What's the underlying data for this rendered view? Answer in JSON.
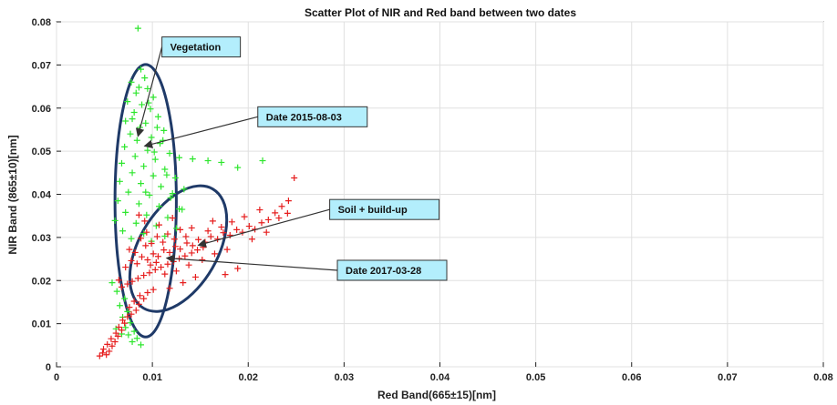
{
  "chart_data": {
    "type": "scatter",
    "title": "Scatter Plot of NIR and Red band between two dates",
    "xlabel": "Red Band(665±15)[nm]",
    "ylabel": "NIR Band (865±10)[nm]",
    "xlim": [
      0,
      0.08
    ],
    "ylim": [
      0,
      0.08
    ],
    "xticks": [
      "0",
      "0.01",
      "0.02",
      "0.03",
      "0.04",
      "0.05",
      "0.06",
      "0.07",
      "0.08"
    ],
    "yticks": [
      "0",
      "0.01",
      "0.02",
      "0.03",
      "0.04",
      "0.05",
      "0.06",
      "0.07",
      "0.08"
    ],
    "xtick_values": [
      0,
      0.01,
      0.02,
      0.03,
      0.04,
      0.05,
      0.06,
      0.07,
      0.08
    ],
    "ytick_values": [
      0,
      0.01,
      0.02,
      0.03,
      0.04,
      0.05,
      0.06,
      0.07,
      0.08
    ],
    "grid": true,
    "marker": "+",
    "series": [
      {
        "color": "#2ee62e",
        "points": [
          [
            0.0085,
            0.0785
          ],
          [
            0.0088,
            0.069
          ],
          [
            0.0092,
            0.067
          ],
          [
            0.0078,
            0.066
          ],
          [
            0.0095,
            0.0645
          ],
          [
            0.0083,
            0.0635
          ],
          [
            0.0101,
            0.0625
          ],
          [
            0.0074,
            0.0615
          ],
          [
            0.0089,
            0.0608
          ],
          [
            0.0098,
            0.0598
          ],
          [
            0.0081,
            0.059
          ],
          [
            0.0106,
            0.058
          ],
          [
            0.0072,
            0.057
          ],
          [
            0.0093,
            0.0565
          ],
          [
            0.0087,
            0.0555
          ],
          [
            0.0112,
            0.0548
          ],
          [
            0.0077,
            0.054
          ],
          [
            0.0099,
            0.0532
          ],
          [
            0.0084,
            0.0525
          ],
          [
            0.0108,
            0.0518
          ],
          [
            0.0071,
            0.051
          ],
          [
            0.0095,
            0.0502
          ],
          [
            0.0118,
            0.0495
          ],
          [
            0.0082,
            0.0488
          ],
          [
            0.0103,
            0.0481
          ],
          [
            0.0128,
            0.0485
          ],
          [
            0.0142,
            0.0482
          ],
          [
            0.0158,
            0.0478
          ],
          [
            0.0172,
            0.0474
          ],
          [
            0.0189,
            0.0462
          ],
          [
            0.0215,
            0.0478
          ],
          [
            0.0068,
            0.0472
          ],
          [
            0.0091,
            0.0465
          ],
          [
            0.0113,
            0.0458
          ],
          [
            0.0079,
            0.045
          ],
          [
            0.0101,
            0.0443
          ],
          [
            0.0124,
            0.0438
          ],
          [
            0.0066,
            0.043
          ],
          [
            0.0088,
            0.0425
          ],
          [
            0.0109,
            0.0418
          ],
          [
            0.0133,
            0.0412
          ],
          [
            0.0075,
            0.0405
          ],
          [
            0.0097,
            0.0398
          ],
          [
            0.0119,
            0.0392
          ],
          [
            0.0064,
            0.0385
          ],
          [
            0.0086,
            0.0378
          ],
          [
            0.0107,
            0.0372
          ],
          [
            0.0128,
            0.0366
          ],
          [
            0.0072,
            0.0358
          ],
          [
            0.0094,
            0.0352
          ],
          [
            0.0116,
            0.0346
          ],
          [
            0.0061,
            0.0339
          ],
          [
            0.0083,
            0.0333
          ],
          [
            0.0104,
            0.0327
          ],
          [
            0.0125,
            0.0321
          ],
          [
            0.0069,
            0.0315
          ],
          [
            0.0091,
            0.0309
          ],
          [
            0.0113,
            0.0303
          ],
          [
            0.0078,
            0.0297
          ],
          [
            0.0099,
            0.0291
          ],
          [
            0.0058,
            0.0195
          ],
          [
            0.0063,
            0.0175
          ],
          [
            0.0071,
            0.0158
          ],
          [
            0.0066,
            0.0142
          ],
          [
            0.0074,
            0.0128
          ],
          [
            0.0069,
            0.0115
          ],
          [
            0.0077,
            0.0102
          ],
          [
            0.0072,
            0.0091
          ],
          [
            0.0081,
            0.0082
          ],
          [
            0.0075,
            0.0074
          ],
          [
            0.0084,
            0.0066
          ],
          [
            0.0079,
            0.0058
          ],
          [
            0.0088,
            0.0051
          ],
          [
            0.0062,
            0.0088
          ],
          [
            0.0068,
            0.0076
          ],
          [
            0.0093,
            0.0405
          ],
          [
            0.0105,
            0.0555
          ],
          [
            0.0111,
            0.0525
          ],
          [
            0.0079,
            0.0575
          ],
          [
            0.0096,
            0.0612
          ],
          [
            0.0086,
            0.0648
          ],
          [
            0.0102,
            0.0498
          ],
          [
            0.0115,
            0.0445
          ],
          [
            0.0121,
            0.0402
          ],
          [
            0.0131,
            0.0365
          ]
        ]
      },
      {
        "color": "#e61e1e",
        "points": [
          [
            0.0045,
            0.0025
          ],
          [
            0.0048,
            0.0032
          ],
          [
            0.0052,
            0.0028
          ],
          [
            0.0049,
            0.0041
          ],
          [
            0.0055,
            0.0036
          ],
          [
            0.0058,
            0.0048
          ],
          [
            0.0053,
            0.0052
          ],
          [
            0.0061,
            0.0058
          ],
          [
            0.0057,
            0.0065
          ],
          [
            0.0064,
            0.0071
          ],
          [
            0.0062,
            0.0078
          ],
          [
            0.0068,
            0.0085
          ],
          [
            0.0065,
            0.0092
          ],
          [
            0.0071,
            0.0101
          ],
          [
            0.0069,
            0.0108
          ],
          [
            0.0074,
            0.0116
          ],
          [
            0.0078,
            0.0122
          ],
          [
            0.0083,
            0.0131
          ],
          [
            0.0076,
            0.0138
          ],
          [
            0.0086,
            0.0145
          ],
          [
            0.0081,
            0.0152
          ],
          [
            0.0091,
            0.0158
          ],
          [
            0.0087,
            0.0165
          ],
          [
            0.0095,
            0.0172
          ],
          [
            0.0101,
            0.0179
          ],
          [
            0.0068,
            0.0185
          ],
          [
            0.0074,
            0.0192
          ],
          [
            0.0079,
            0.0198
          ],
          [
            0.0085,
            0.0205
          ],
          [
            0.0091,
            0.0212
          ],
          [
            0.0097,
            0.0218
          ],
          [
            0.0103,
            0.0225
          ],
          [
            0.0109,
            0.0231
          ],
          [
            0.0116,
            0.0238
          ],
          [
            0.0122,
            0.0244
          ],
          [
            0.0128,
            0.0251
          ],
          [
            0.0134,
            0.0257
          ],
          [
            0.0141,
            0.0264
          ],
          [
            0.0147,
            0.0271
          ],
          [
            0.0153,
            0.0277
          ],
          [
            0.0072,
            0.0231
          ],
          [
            0.0078,
            0.0246
          ],
          [
            0.0084,
            0.0239
          ],
          [
            0.0089,
            0.0255
          ],
          [
            0.0095,
            0.0248
          ],
          [
            0.0101,
            0.0262
          ],
          [
            0.0106,
            0.0256
          ],
          [
            0.0112,
            0.0271
          ],
          [
            0.0118,
            0.0265
          ],
          [
            0.0124,
            0.0279
          ],
          [
            0.0129,
            0.0273
          ],
          [
            0.0136,
            0.0287
          ],
          [
            0.0142,
            0.0281
          ],
          [
            0.0148,
            0.0295
          ],
          [
            0.0155,
            0.0289
          ],
          [
            0.0161,
            0.0302
          ],
          [
            0.0168,
            0.0296
          ],
          [
            0.0174,
            0.0311
          ],
          [
            0.0181,
            0.0305
          ],
          [
            0.0188,
            0.0318
          ],
          [
            0.0194,
            0.0312
          ],
          [
            0.0201,
            0.0326
          ],
          [
            0.0207,
            0.0319
          ],
          [
            0.0214,
            0.0334
          ],
          [
            0.0221,
            0.0341
          ],
          [
            0.0228,
            0.0357
          ],
          [
            0.0235,
            0.0372
          ],
          [
            0.0242,
            0.0385
          ],
          [
            0.0248,
            0.0438
          ],
          [
            0.0212,
            0.0364
          ],
          [
            0.0196,
            0.0348
          ],
          [
            0.0183,
            0.0336
          ],
          [
            0.0172,
            0.0324
          ],
          [
            0.0158,
            0.0315
          ],
          [
            0.0121,
            0.0345
          ],
          [
            0.0088,
            0.0298
          ],
          [
            0.0094,
            0.0312
          ],
          [
            0.0099,
            0.0286
          ],
          [
            0.0105,
            0.0302
          ],
          [
            0.0111,
            0.0289
          ],
          [
            0.0116,
            0.0308
          ],
          [
            0.0123,
            0.0296
          ],
          [
            0.0129,
            0.0318
          ],
          [
            0.0135,
            0.0302
          ],
          [
            0.0076,
            0.0272
          ],
          [
            0.0082,
            0.0265
          ],
          [
            0.0093,
            0.0281
          ],
          [
            0.0098,
            0.0236
          ],
          [
            0.0104,
            0.0242
          ],
          [
            0.0113,
            0.0215
          ],
          [
            0.0125,
            0.0222
          ],
          [
            0.0138,
            0.0236
          ],
          [
            0.0152,
            0.0248
          ],
          [
            0.0165,
            0.0262
          ],
          [
            0.0178,
            0.0272
          ],
          [
            0.0189,
            0.0228
          ],
          [
            0.0176,
            0.0214
          ],
          [
            0.0118,
            0.0182
          ],
          [
            0.0132,
            0.0195
          ],
          [
            0.0145,
            0.0208
          ],
          [
            0.0086,
            0.0352
          ],
          [
            0.0092,
            0.0338
          ],
          [
            0.0107,
            0.0329
          ],
          [
            0.0141,
            0.0322
          ],
          [
            0.0163,
            0.0338
          ],
          [
            0.0204,
            0.0296
          ],
          [
            0.0219,
            0.0312
          ],
          [
            0.0232,
            0.0345
          ],
          [
            0.0241,
            0.0356
          ],
          [
            0.0065,
            0.0201
          ]
        ]
      }
    ],
    "annotations": [
      {
        "text": "Vegetation",
        "x": 0.011,
        "y": 0.0765,
        "target": [
          0.0085,
          0.0535
        ]
      },
      {
        "text": "Date 2015-08-03",
        "x": 0.021,
        "y": 0.0603,
        "target": [
          0.0092,
          0.0512
        ]
      },
      {
        "text": "Soil + build-up",
        "x": 0.0285,
        "y": 0.0388,
        "target": [
          0.0148,
          0.0282
        ]
      },
      {
        "text": "Date 2017-03-28",
        "x": 0.0293,
        "y": 0.0247,
        "target": [
          0.0115,
          0.0252
        ]
      }
    ],
    "ellipses": [
      {
        "cx": 0.0093,
        "cy": 0.0385,
        "rx": 0.0032,
        "ry": 0.0316,
        "angle": 0,
        "color": "#1f3a68"
      },
      {
        "cx": 0.0127,
        "cy": 0.0274,
        "rx": 0.0072,
        "ry": 0.0091,
        "angle": -60,
        "color": "#1f3a68"
      }
    ]
  }
}
